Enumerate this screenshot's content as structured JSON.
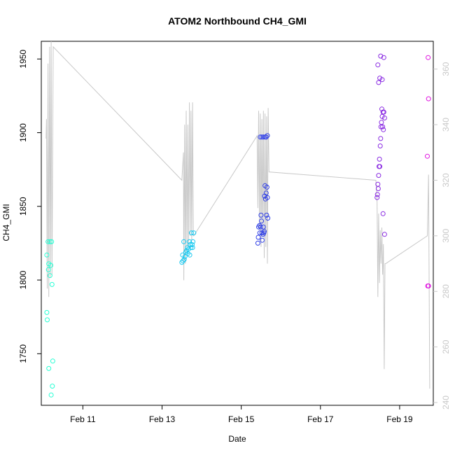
{
  "chart_data": {
    "type": "scatter",
    "title": "ATOM2 Northbound CH4_GMI",
    "xlabel": "Date",
    "ylabel": "CH4_GMI",
    "x_axis": {
      "unit": "day of February",
      "xlim": [
        9.95,
        19.85
      ],
      "ticks": [
        11,
        13,
        15,
        17,
        19
      ],
      "tick_labels": [
        "Feb 11",
        "Feb 13",
        "Feb 15",
        "Feb 17",
        "Feb 19"
      ]
    },
    "y_axis_left": {
      "ylim": [
        1715,
        1962
      ],
      "ticks": [
        1750,
        1800,
        1850,
        1900,
        1950
      ],
      "tick_labels": [
        "1750",
        "1800",
        "1850",
        "1900",
        "1950"
      ]
    },
    "y_axis_right": {
      "ylim": [
        239,
        370
      ],
      "ticks": [
        240,
        260,
        280,
        300,
        320,
        340,
        360
      ],
      "tick_labels": [
        "240",
        "260",
        "280",
        "300",
        "320",
        "340",
        "360"
      ],
      "color": "#c8c8c8"
    },
    "grid": false,
    "legend": "none",
    "series": [
      {
        "type": "scatter",
        "axis": "left",
        "marker": "open-circle",
        "color_by": "time (cyan to magenta)",
        "points": [
          {
            "x": 10.12,
            "y": 1826,
            "color": "#26ffd4"
          },
          {
            "x": 10.17,
            "y": 1826,
            "color": "#26ffd4"
          },
          {
            "x": 10.21,
            "y": 1826,
            "color": "#26ffd4"
          },
          {
            "x": 10.09,
            "y": 1817,
            "color": "#26ffd4"
          },
          {
            "x": 10.14,
            "y": 1811,
            "color": "#26ffd4"
          },
          {
            "x": 10.19,
            "y": 1810,
            "color": "#26ffd4"
          },
          {
            "x": 10.13,
            "y": 1807,
            "color": "#26ffd4"
          },
          {
            "x": 10.17,
            "y": 1803,
            "color": "#26ffd4"
          },
          {
            "x": 10.22,
            "y": 1797,
            "color": "#26ffd4"
          },
          {
            "x": 10.09,
            "y": 1778,
            "color": "#26ffd4"
          },
          {
            "x": 10.1,
            "y": 1773,
            "color": "#26ffd4"
          },
          {
            "x": 10.24,
            "y": 1745,
            "color": "#26ffd4"
          },
          {
            "x": 10.14,
            "y": 1740,
            "color": "#26ffd4"
          },
          {
            "x": 10.23,
            "y": 1728,
            "color": "#26ffd4"
          },
          {
            "x": 10.2,
            "y": 1722,
            "color": "#26ffd4"
          },
          {
            "x": 13.52,
            "y": 1817,
            "color": "#19c9f0"
          },
          {
            "x": 13.55,
            "y": 1826,
            "color": "#19c9f0"
          },
          {
            "x": 13.5,
            "y": 1812,
            "color": "#19c9f0"
          },
          {
            "x": 13.56,
            "y": 1814,
            "color": "#19c9f0"
          },
          {
            "x": 13.58,
            "y": 1816,
            "color": "#19c9f0"
          },
          {
            "x": 13.6,
            "y": 1819,
            "color": "#19c9f0"
          },
          {
            "x": 13.62,
            "y": 1820,
            "color": "#19c9f0"
          },
          {
            "x": 13.64,
            "y": 1822,
            "color": "#19c9f0"
          },
          {
            "x": 13.65,
            "y": 1818,
            "color": "#19c9f0"
          },
          {
            "x": 13.67,
            "y": 1821,
            "color": "#19c9f0"
          },
          {
            "x": 13.69,
            "y": 1826,
            "color": "#19c9f0"
          },
          {
            "x": 13.71,
            "y": 1824,
            "color": "#19c9f0"
          },
          {
            "x": 13.73,
            "y": 1822,
            "color": "#19c9f0"
          },
          {
            "x": 13.74,
            "y": 1832,
            "color": "#19c9f0"
          },
          {
            "x": 13.76,
            "y": 1824,
            "color": "#19c9f0"
          },
          {
            "x": 13.78,
            "y": 1826,
            "color": "#19c9f0"
          },
          {
            "x": 13.8,
            "y": 1832,
            "color": "#19c9f0"
          },
          {
            "x": 13.7,
            "y": 1817,
            "color": "#19c9f0"
          },
          {
            "x": 13.53,
            "y": 1813,
            "color": "#19c9f0"
          },
          {
            "x": 13.77,
            "y": 1822,
            "color": "#19c9f0"
          },
          {
            "x": 15.42,
            "y": 1825,
            "color": "#2f3fe6"
          },
          {
            "x": 15.43,
            "y": 1829,
            "color": "#2f3fe6"
          },
          {
            "x": 15.44,
            "y": 1836,
            "color": "#2f3fe6"
          },
          {
            "x": 15.46,
            "y": 1837,
            "color": "#2f3fe6"
          },
          {
            "x": 15.47,
            "y": 1832,
            "color": "#2f3fe6"
          },
          {
            "x": 15.49,
            "y": 1836,
            "color": "#2f3fe6"
          },
          {
            "x": 15.5,
            "y": 1844,
            "color": "#2f3fe6"
          },
          {
            "x": 15.51,
            "y": 1840,
            "color": "#2f3fe6"
          },
          {
            "x": 15.52,
            "y": 1832,
            "color": "#2f3fe6"
          },
          {
            "x": 15.53,
            "y": 1827,
            "color": "#2f3fe6"
          },
          {
            "x": 15.55,
            "y": 1831,
            "color": "#2f3fe6"
          },
          {
            "x": 15.56,
            "y": 1836,
            "color": "#2f3fe6"
          },
          {
            "x": 15.57,
            "y": 1832,
            "color": "#2f3fe6"
          },
          {
            "x": 15.58,
            "y": 1833,
            "color": "#2f3fe6"
          },
          {
            "x": 15.59,
            "y": 1857,
            "color": "#2f3fe6"
          },
          {
            "x": 15.6,
            "y": 1864,
            "color": "#2f3fe6"
          },
          {
            "x": 15.61,
            "y": 1855,
            "color": "#2f3fe6"
          },
          {
            "x": 15.63,
            "y": 1859,
            "color": "#2f3fe6"
          },
          {
            "x": 15.64,
            "y": 1844,
            "color": "#2f3fe6"
          },
          {
            "x": 15.65,
            "y": 1863,
            "color": "#2f3fe6"
          },
          {
            "x": 15.66,
            "y": 1856,
            "color": "#2f3fe6"
          },
          {
            "x": 15.67,
            "y": 1842,
            "color": "#2f3fe6"
          },
          {
            "x": 15.48,
            "y": 1897,
            "color": "#2f3fe6"
          },
          {
            "x": 15.52,
            "y": 1897,
            "color": "#2f3fe6"
          },
          {
            "x": 15.56,
            "y": 1897,
            "color": "#2f3fe6"
          },
          {
            "x": 15.6,
            "y": 1897,
            "color": "#2f3fe6"
          },
          {
            "x": 15.63,
            "y": 1897,
            "color": "#2f3fe6"
          },
          {
            "x": 15.66,
            "y": 1898,
            "color": "#2f3fe6"
          },
          {
            "x": 18.43,
            "y": 1856,
            "color": "#8a2be2"
          },
          {
            "x": 18.44,
            "y": 1858,
            "color": "#8a2be2"
          },
          {
            "x": 18.45,
            "y": 1865,
            "color": "#8a2be2"
          },
          {
            "x": 18.46,
            "y": 1862,
            "color": "#8a2be2"
          },
          {
            "x": 18.47,
            "y": 1871,
            "color": "#8a2be2"
          },
          {
            "x": 18.48,
            "y": 1877,
            "color": "#8a2be2"
          },
          {
            "x": 18.49,
            "y": 1882,
            "color": "#8a2be2"
          },
          {
            "x": 18.5,
            "y": 1877,
            "color": "#8a2be2"
          },
          {
            "x": 18.51,
            "y": 1891,
            "color": "#8a2be2"
          },
          {
            "x": 18.52,
            "y": 1896,
            "color": "#8a2be2"
          },
          {
            "x": 18.53,
            "y": 1904,
            "color": "#8a2be2"
          },
          {
            "x": 18.54,
            "y": 1907,
            "color": "#8a2be2"
          },
          {
            "x": 18.55,
            "y": 1916,
            "color": "#8a2be2"
          },
          {
            "x": 18.56,
            "y": 1911,
            "color": "#8a2be2"
          },
          {
            "x": 18.57,
            "y": 1904,
            "color": "#8a2be2"
          },
          {
            "x": 18.58,
            "y": 1914,
            "color": "#8a2be2"
          },
          {
            "x": 18.59,
            "y": 1902,
            "color": "#8a2be2"
          },
          {
            "x": 18.6,
            "y": 1914,
            "color": "#8a2be2"
          },
          {
            "x": 18.62,
            "y": 1910,
            "color": "#8a2be2"
          },
          {
            "x": 18.45,
            "y": 1946,
            "color": "#8a2be2"
          },
          {
            "x": 18.47,
            "y": 1934,
            "color": "#8a2be2"
          },
          {
            "x": 18.5,
            "y": 1937,
            "color": "#8a2be2"
          },
          {
            "x": 18.52,
            "y": 1952,
            "color": "#8a2be2"
          },
          {
            "x": 18.56,
            "y": 1936,
            "color": "#8a2be2"
          },
          {
            "x": 18.6,
            "y": 1951,
            "color": "#8a2be2"
          },
          {
            "x": 18.58,
            "y": 1845,
            "color": "#8a2be2"
          },
          {
            "x": 18.62,
            "y": 1831,
            "color": "#8a2be2"
          },
          {
            "x": 19.72,
            "y": 1951,
            "color": "#e015e0"
          },
          {
            "x": 19.73,
            "y": 1923,
            "color": "#e015e0"
          },
          {
            "x": 19.7,
            "y": 1884,
            "color": "#e015e0"
          },
          {
            "x": 19.71,
            "y": 1796,
            "color": "#e015e0"
          },
          {
            "x": 19.73,
            "y": 1796,
            "color": "#e015e0"
          }
        ]
      },
      {
        "type": "line",
        "axis": "right",
        "color": "#c8c8c8",
        "x": [
          10.07,
          10.08,
          10.1,
          10.12,
          10.14,
          10.16,
          10.18,
          10.2,
          10.22,
          10.25,
          13.5,
          13.54,
          13.55,
          13.57,
          13.59,
          13.61,
          13.63,
          13.65,
          13.67,
          13.69,
          13.71,
          13.73,
          13.75,
          13.77,
          13.79,
          13.8,
          15.4,
          15.42,
          15.44,
          15.46,
          15.48,
          15.5,
          15.52,
          15.54,
          15.56,
          15.58,
          15.6,
          15.62,
          15.64,
          15.66,
          15.68,
          15.7,
          18.4,
          18.43,
          18.45,
          18.47,
          18.49,
          18.51,
          18.53,
          18.55,
          18.57,
          18.59,
          18.61,
          18.63,
          18.65,
          19.7,
          19.73,
          19.76
        ],
        "y": [
          335,
          342,
          281,
          362,
          278,
          368,
          285,
          370,
          286,
          368,
          320,
          330,
          284,
          340,
          290,
          345,
          294,
          340,
          296,
          348,
          300,
          345,
          298,
          348,
          300,
          300,
          336,
          310,
          345,
          302,
          344,
          296,
          342,
          300,
          345,
          292,
          344,
          296,
          343,
          290,
          346,
          323,
          320,
          312,
          278,
          308,
          283,
          302,
          290,
          303,
          286,
          297,
          252,
          290,
          290,
          300,
          322,
          245
        ]
      }
    ]
  }
}
